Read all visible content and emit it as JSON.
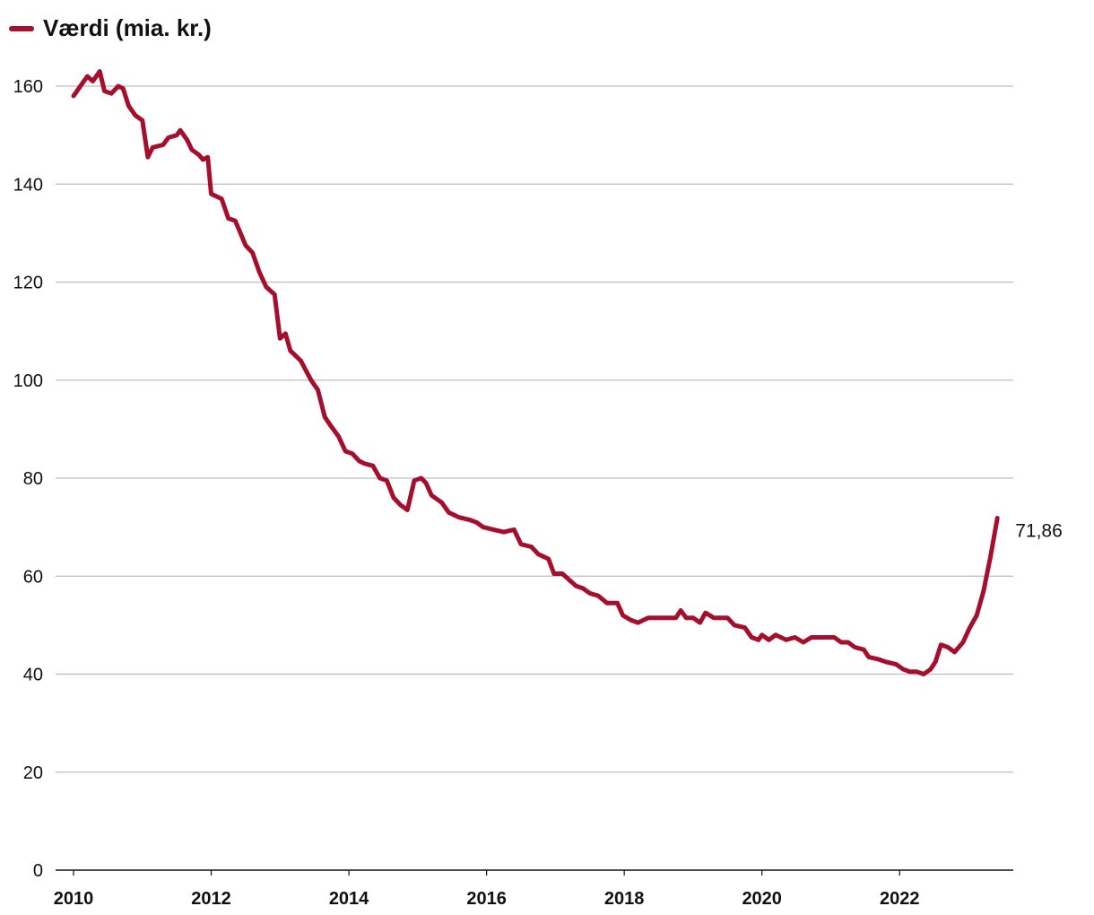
{
  "chart_data": {
    "type": "line",
    "title": "",
    "xlabel": "",
    "ylabel": "",
    "xlim": [
      2010,
      2023.5
    ],
    "ylim": [
      0,
      160
    ],
    "y_ticks": [
      "0",
      "20",
      "40",
      "60",
      "80",
      "100",
      "120",
      "140",
      "160"
    ],
    "x_ticks": [
      "2010",
      "2012",
      "2014",
      "2016",
      "2018",
      "2020",
      "2022"
    ],
    "grid": "horizontal",
    "legend_position": "top-left",
    "end_label": "71,86",
    "series": [
      {
        "name": "Værdi (mia. kr.)",
        "color": "#a50e2d",
        "points": [
          [
            2010.0,
            158
          ],
          [
            2010.1,
            160
          ],
          [
            2010.2,
            162
          ],
          [
            2010.28,
            161
          ],
          [
            2010.38,
            163
          ],
          [
            2010.45,
            159
          ],
          [
            2010.55,
            158.5
          ],
          [
            2010.65,
            160
          ],
          [
            2010.72,
            159.5
          ],
          [
            2010.8,
            156
          ],
          [
            2010.9,
            154
          ],
          [
            2011.0,
            153
          ],
          [
            2011.08,
            145.5
          ],
          [
            2011.15,
            147.5
          ],
          [
            2011.3,
            148
          ],
          [
            2011.38,
            149.5
          ],
          [
            2011.5,
            150
          ],
          [
            2011.55,
            151
          ],
          [
            2011.65,
            149
          ],
          [
            2011.72,
            147
          ],
          [
            2011.82,
            146
          ],
          [
            2011.88,
            145
          ],
          [
            2011.95,
            145.5
          ],
          [
            2012.0,
            138
          ],
          [
            2012.15,
            137
          ],
          [
            2012.25,
            133
          ],
          [
            2012.35,
            132.5
          ],
          [
            2012.5,
            127.5
          ],
          [
            2012.6,
            126
          ],
          [
            2012.7,
            122
          ],
          [
            2012.8,
            119
          ],
          [
            2012.92,
            117.5
          ],
          [
            2013.0,
            108.5
          ],
          [
            2013.08,
            109.5
          ],
          [
            2013.15,
            106
          ],
          [
            2013.3,
            104
          ],
          [
            2013.45,
            100
          ],
          [
            2013.55,
            98
          ],
          [
            2013.65,
            92.5
          ],
          [
            2013.72,
            91
          ],
          [
            2013.85,
            88.5
          ],
          [
            2013.95,
            85.5
          ],
          [
            2014.05,
            85
          ],
          [
            2014.15,
            83.5
          ],
          [
            2014.22,
            83
          ],
          [
            2014.35,
            82.5
          ],
          [
            2014.45,
            80
          ],
          [
            2014.55,
            79.5
          ],
          [
            2014.65,
            76
          ],
          [
            2014.75,
            74.5
          ],
          [
            2014.85,
            73.5
          ],
          [
            2014.95,
            79.5
          ],
          [
            2015.05,
            80
          ],
          [
            2015.12,
            79
          ],
          [
            2015.2,
            76.5
          ],
          [
            2015.35,
            75
          ],
          [
            2015.45,
            73
          ],
          [
            2015.6,
            72
          ],
          [
            2015.75,
            71.5
          ],
          [
            2015.85,
            71
          ],
          [
            2015.95,
            70
          ],
          [
            2016.1,
            69.5
          ],
          [
            2016.25,
            69
          ],
          [
            2016.4,
            69.5
          ],
          [
            2016.5,
            66.5
          ],
          [
            2016.65,
            66
          ],
          [
            2016.75,
            64.5
          ],
          [
            2016.9,
            63.5
          ],
          [
            2016.98,
            60.5
          ],
          [
            2017.1,
            60.5
          ],
          [
            2017.3,
            58
          ],
          [
            2017.4,
            57.5
          ],
          [
            2017.5,
            56.5
          ],
          [
            2017.62,
            56
          ],
          [
            2017.75,
            54.5
          ],
          [
            2017.9,
            54.5
          ],
          [
            2017.98,
            52
          ],
          [
            2018.1,
            51
          ],
          [
            2018.2,
            50.5
          ],
          [
            2018.35,
            51.5
          ],
          [
            2018.5,
            51.5
          ],
          [
            2018.6,
            51.5
          ],
          [
            2018.75,
            51.5
          ],
          [
            2018.82,
            53
          ],
          [
            2018.9,
            51.5
          ],
          [
            2019.0,
            51.5
          ],
          [
            2019.1,
            50.5
          ],
          [
            2019.18,
            52.5
          ],
          [
            2019.3,
            51.5
          ],
          [
            2019.4,
            51.5
          ],
          [
            2019.5,
            51.5
          ],
          [
            2019.6,
            50
          ],
          [
            2019.75,
            49.5
          ],
          [
            2019.85,
            47.5
          ],
          [
            2019.95,
            47
          ],
          [
            2020.0,
            48
          ],
          [
            2020.1,
            47
          ],
          [
            2020.2,
            48
          ],
          [
            2020.35,
            47
          ],
          [
            2020.48,
            47.5
          ],
          [
            2020.6,
            46.5
          ],
          [
            2020.72,
            47.5
          ],
          [
            2020.85,
            47.5
          ],
          [
            2020.95,
            47.5
          ],
          [
            2021.05,
            47.5
          ],
          [
            2021.15,
            46.5
          ],
          [
            2021.25,
            46.5
          ],
          [
            2021.35,
            45.5
          ],
          [
            2021.48,
            45
          ],
          [
            2021.55,
            43.5
          ],
          [
            2021.7,
            43
          ],
          [
            2021.8,
            42.5
          ],
          [
            2021.95,
            42
          ],
          [
            2022.05,
            41
          ],
          [
            2022.15,
            40.5
          ],
          [
            2022.25,
            40.5
          ],
          [
            2022.35,
            40
          ],
          [
            2022.45,
            41
          ],
          [
            2022.52,
            42.5
          ],
          [
            2022.6,
            46
          ],
          [
            2022.7,
            45.5
          ],
          [
            2022.8,
            44.5
          ],
          [
            2022.92,
            46.5
          ],
          [
            2023.02,
            49.5
          ],
          [
            2023.12,
            52
          ],
          [
            2023.22,
            57
          ],
          [
            2023.32,
            64
          ],
          [
            2023.42,
            71.86
          ]
        ]
      }
    ]
  }
}
